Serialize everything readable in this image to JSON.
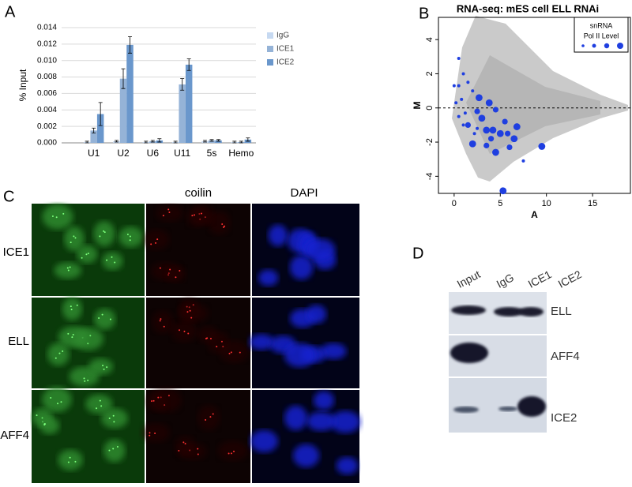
{
  "panel_labels": [
    "A",
    "B",
    "C",
    "D"
  ],
  "chart_data": [
    {
      "type": "bar",
      "ylabel": "% Input",
      "categories": [
        "U1",
        "U2",
        "U6",
        "U11",
        "5s",
        "Hemo"
      ],
      "series": [
        {
          "name": "IgG",
          "color": "#c6d9f1",
          "values": [
            0.0001,
            0.0002,
            0.0001,
            0.0001,
            0.0002,
            0.0001
          ],
          "errors": [
            0.0001,
            0.0001,
            0.0001,
            0.0001,
            0.0001,
            0.0001
          ]
        },
        {
          "name": "ICE1",
          "color": "#95b3d7",
          "values": [
            0.0015,
            0.0078,
            0.0002,
            0.0071,
            0.0003,
            0.0001
          ],
          "errors": [
            0.0003,
            0.0012,
            0.0001,
            0.0007,
            0.0001,
            0.0001
          ]
        },
        {
          "name": "ICE2",
          "color": "#6a97cc",
          "values": [
            0.0035,
            0.0119,
            0.0003,
            0.0095,
            0.0003,
            0.0004
          ],
          "errors": [
            0.0014,
            0.001,
            0.0002,
            0.0007,
            0.0001,
            0.0002
          ]
        }
      ],
      "ylim": [
        0,
        0.014
      ],
      "yticks": [
        {
          "value": 0,
          "label": "0.000"
        },
        {
          "value": 0.002,
          "label": "0.002"
        },
        {
          "value": 0.004,
          "label": "0.004"
        },
        {
          "value": 0.006,
          "label": "0.006"
        },
        {
          "value": 0.008,
          "label": "0.008"
        },
        {
          "value": 0.01,
          "label": "0.010"
        },
        {
          "value": 0.012,
          "label": "0.012"
        },
        {
          "value": 0.014,
          "label": "0.014"
        }
      ],
      "grid": true,
      "legend": "upper right"
    },
    {
      "type": "scatter",
      "title": "RNA-seq: mES cell ELL RNAi",
      "xlabel": "A",
      "ylabel": "M",
      "legend_title": [
        "snRNA",
        "Pol II Level"
      ],
      "series": [
        {
          "color": "#1f3fe0",
          "x": [
            5.3,
            9.5,
            6.5,
            4.5,
            2.0,
            3.5,
            4.2,
            5.0,
            5.8,
            6.8,
            3.0,
            2.7,
            3.8,
            4.5,
            2.5,
            1.5,
            2.2,
            1.0,
            0.5,
            0.0,
            0.5,
            1.0,
            1.5,
            2.0,
            7.5,
            5.5,
            3.5,
            4.0,
            0.2,
            0.8,
            1.2,
            0.5,
            2.5,
            6.0
          ],
          "values": [
            -4.85,
            -2.25,
            -1.8,
            -2.6,
            -2.1,
            -1.3,
            -1.3,
            -1.5,
            -1.5,
            -1.1,
            -0.6,
            0.6,
            0.3,
            -0.1,
            -0.2,
            -1.0,
            -1.5,
            -1.0,
            1.3,
            1.3,
            2.9,
            2.0,
            1.5,
            1.0,
            -3.1,
            -0.8,
            -2.2,
            -1.8,
            0.3,
            0.5,
            -0.3,
            -0.5,
            -1.2,
            -2.3
          ],
          "sizes": [
            4,
            4,
            4,
            4,
            4,
            4,
            4,
            4,
            3,
            4,
            4,
            4,
            4,
            3,
            3,
            3,
            1,
            1,
            1,
            1,
            1,
            1,
            1,
            1,
            1,
            3,
            3,
            3,
            1,
            1,
            1,
            1,
            1,
            3
          ]
        }
      ],
      "xlim": [
        -1.7,
        19.1
      ],
      "xticks": [
        0,
        5,
        10,
        15
      ],
      "ylim": [
        -5,
        5.3
      ],
      "yticks": [
        -4,
        -2,
        0,
        2,
        4
      ],
      "reference_line": 0
    }
  ],
  "microscopy": {
    "columns": [
      "coilin",
      "DAPI"
    ],
    "rows": [
      "ICE1",
      "ELL",
      "AFF4"
    ]
  },
  "blot": {
    "lanes": [
      "Input",
      "IgG",
      "ICE1",
      "ICE2"
    ],
    "rows": [
      "ELL",
      "AFF4",
      "ICE2"
    ]
  }
}
